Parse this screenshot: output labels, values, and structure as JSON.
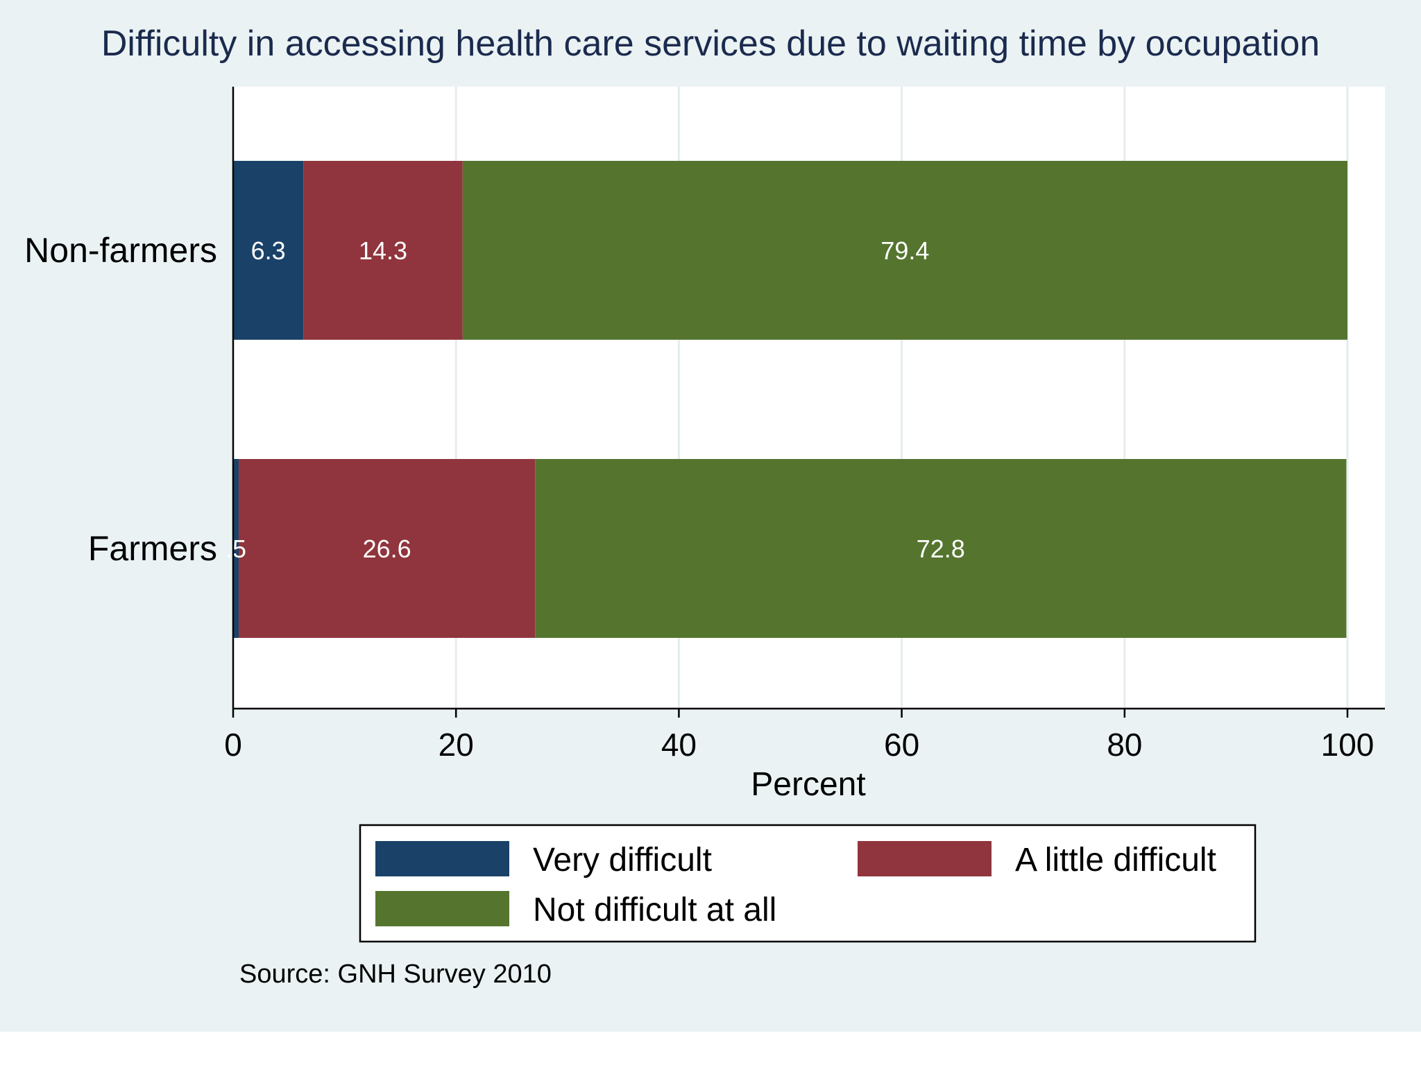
{
  "chart_data": {
    "type": "bar",
    "orientation": "horizontal",
    "stacked": true,
    "title": "Difficulty in accessing health care services due to waiting time by occupation",
    "categories": [
      "Non-farmers",
      "Farmers"
    ],
    "series": [
      {
        "name": "Very difficult",
        "values": [
          6.3,
          0.5
        ],
        "labels": [
          "6.3",
          ".5"
        ],
        "color": "#1a4269"
      },
      {
        "name": "A little difficult",
        "values": [
          14.3,
          26.6
        ],
        "labels": [
          "14.3",
          "26.6"
        ],
        "color": "#90353d"
      },
      {
        "name": "Not difficult at all",
        "values": [
          79.4,
          72.8
        ],
        "labels": [
          "79.4",
          "72.8"
        ],
        "color": "#55752f"
      }
    ],
    "xlabel": "Percent",
    "ylabel": "",
    "xlim": [
      0,
      100
    ],
    "xticks": [
      0,
      20,
      40,
      60,
      80,
      100
    ],
    "xtick_labels": [
      "0",
      "20",
      "40",
      "60",
      "80",
      "100"
    ],
    "grid": true,
    "legend_position": "bottom",
    "note": "Source: GNH Survey 2010",
    "background_color": "#eaf2f3",
    "plot_background_color": "#ffffff"
  }
}
